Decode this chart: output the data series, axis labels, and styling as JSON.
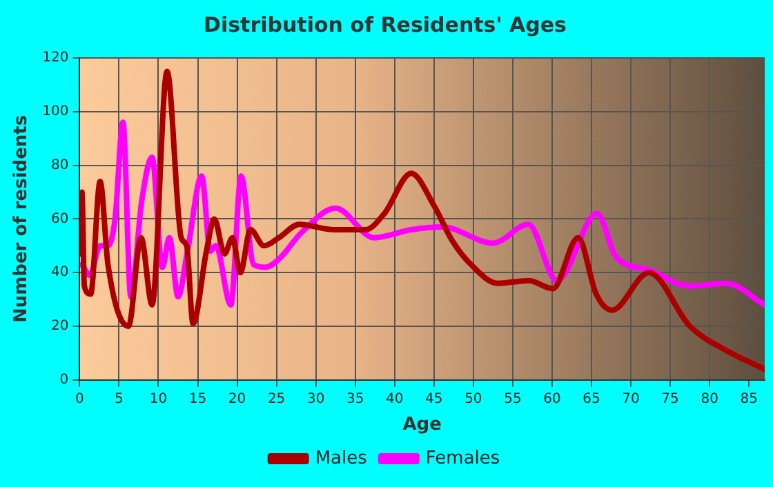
{
  "chart_data": {
    "type": "line",
    "title": "Distribution of Residents' Ages",
    "xlabel": "Age",
    "ylabel": "Number of residents",
    "xlim": [
      0,
      87
    ],
    "xticks": [
      0,
      5,
      10,
      15,
      20,
      25,
      30,
      35,
      40,
      45,
      50,
      55,
      60,
      65,
      70,
      75,
      80,
      85
    ],
    "ylim": [
      0,
      120
    ],
    "yticks": [
      0,
      20,
      40,
      60,
      80,
      100,
      120
    ],
    "grid": true,
    "legend": "bottom",
    "marker": "none",
    "line_style": "solid",
    "series": [
      {
        "name": "Males",
        "color": "#aa0000",
        "x": [
          0,
          0.3,
          0.6,
          1.4,
          2.6,
          3.6,
          6.2,
          7.8,
          9.2,
          11.1,
          12.9,
          13.6,
          14.4,
          16.1,
          17.1,
          18.4,
          19.4,
          20.4,
          21.7,
          23.4,
          25.3,
          27.9,
          32.3,
          36.3,
          38.7,
          42.1,
          45,
          47.3,
          49.7,
          53.1,
          57,
          60.1,
          63.3,
          65.6,
          67.6,
          72.3,
          77.5,
          82.1,
          87
        ],
        "values": [
          47,
          70,
          35,
          32,
          74,
          43,
          20,
          53,
          28,
          115,
          53,
          50,
          21,
          48,
          60,
          47,
          53,
          40,
          56,
          50,
          53,
          58,
          56,
          56,
          62,
          77,
          65,
          52,
          43,
          36,
          37,
          34,
          53,
          32,
          26,
          40,
          20,
          11,
          4
        ]
      },
      {
        "name": "Females",
        "color": "#ff00ff",
        "x": [
          0.3,
          1.3,
          2.6,
          3.6,
          4.5,
          5.5,
          6.5,
          7.9,
          9.2,
          10.5,
          11.4,
          12.5,
          13.7,
          15.5,
          16.6,
          17.3,
          19.2,
          20.5,
          22.1,
          23.6,
          25.3,
          28.2,
          32.5,
          37.4,
          42.1,
          46.1,
          52.5,
          57,
          60.6,
          65.7,
          68.1,
          72.3,
          77.5,
          82.1,
          87
        ],
        "values": [
          43,
          39,
          50,
          50,
          60,
          96,
          31,
          67,
          83,
          42,
          53,
          31,
          48,
          76,
          48,
          50,
          28,
          76,
          43,
          42,
          45,
          55,
          64,
          53,
          56,
          57,
          51,
          58,
          37,
          62,
          46,
          41,
          35,
          36,
          28
        ]
      }
    ]
  }
}
